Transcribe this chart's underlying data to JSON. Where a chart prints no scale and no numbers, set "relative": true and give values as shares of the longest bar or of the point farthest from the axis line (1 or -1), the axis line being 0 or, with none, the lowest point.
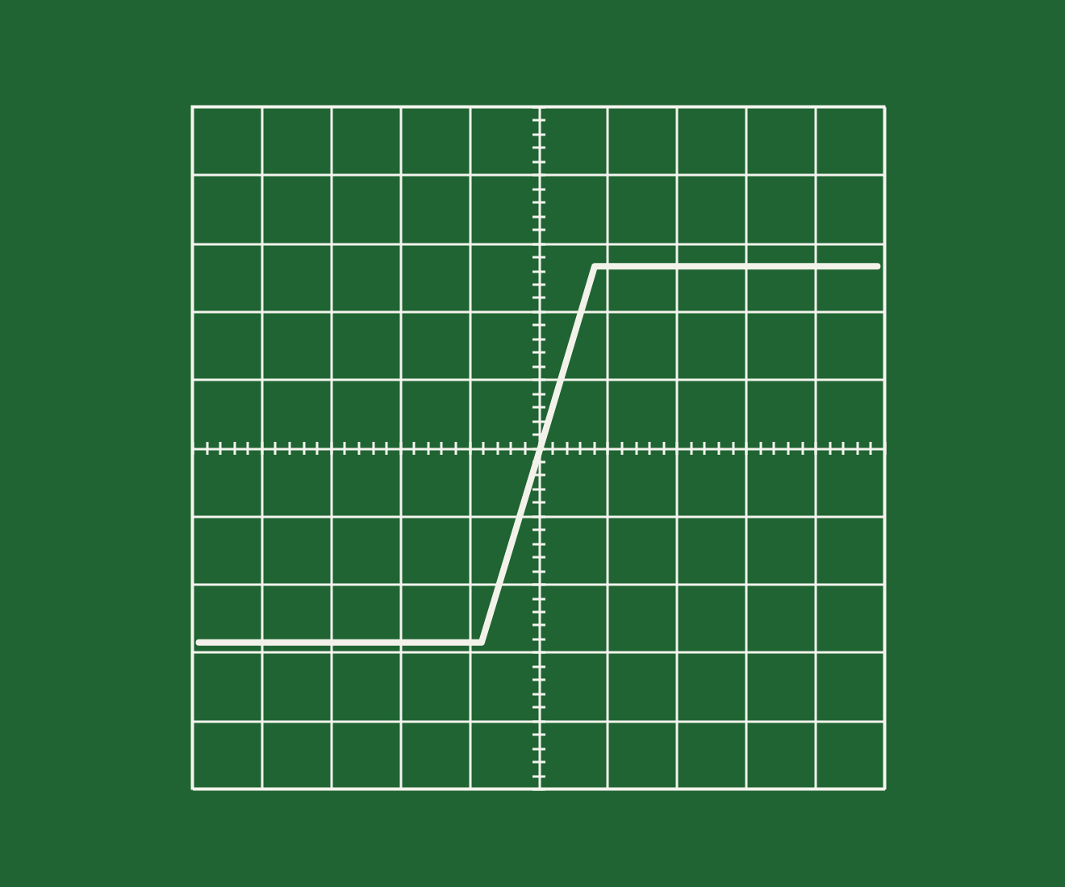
{
  "chart_data": {
    "type": "line",
    "relative": true,
    "categories": [
      null,
      null,
      null,
      null,
      null,
      null,
      null,
      null,
      null,
      null,
      null,
      null,
      null
    ],
    "series": [
      {
        "color": "#f2f2ea",
        "values": [
          -1,
          -1,
          -1,
          -1,
          -1,
          -1,
          -0.04,
          0.93,
          0.93,
          0.93,
          0.93,
          0.93,
          0.93
        ]
      }
    ],
    "grid": true
  }
}
